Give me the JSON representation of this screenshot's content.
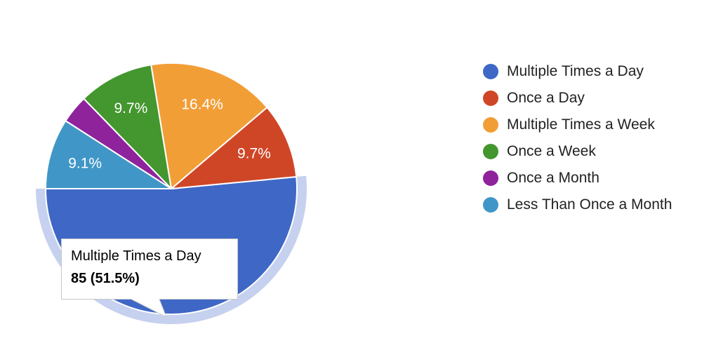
{
  "chart_data": {
    "type": "pie",
    "slices": [
      {
        "label": "Multiple Times a Day",
        "value": 85,
        "percent_label": "51.5%",
        "color": "#3e67c6"
      },
      {
        "label": "Once a Day",
        "value": 16,
        "percent_label": "9.7%",
        "color": "#cf4627"
      },
      {
        "label": "Multiple Times a Week",
        "value": 27,
        "percent_label": "16.4%",
        "color": "#f29e37"
      },
      {
        "label": "Once a Week",
        "value": 16,
        "percent_label": "9.7%",
        "color": "#44962f"
      },
      {
        "label": "Once a Month",
        "value": 6,
        "percent_label": "",
        "color": "#8e239c"
      },
      {
        "label": "Less Than Once a Month",
        "value": 15,
        "percent_label": "9.1%",
        "color": "#4097c7"
      }
    ],
    "highlighted_slice": "Multiple Times a Day",
    "legend_position": "right"
  },
  "legend": {
    "items": [
      {
        "label": "Multiple Times a Day",
        "color": "#3e67c6"
      },
      {
        "label": "Once a Day",
        "color": "#cf4627"
      },
      {
        "label": "Multiple Times a Week",
        "color": "#f29e37"
      },
      {
        "label": "Once a Week",
        "color": "#44962f"
      },
      {
        "label": "Once a Month",
        "color": "#8e239c"
      },
      {
        "label": "Less Than Once a Month",
        "color": "#4097c7"
      }
    ]
  },
  "tooltip": {
    "title": "Multiple Times a Day",
    "value": "85 (51.5%)"
  },
  "colors": {
    "highlight_ring": "#c6d1ef",
    "slice_border": "#ffffff"
  }
}
